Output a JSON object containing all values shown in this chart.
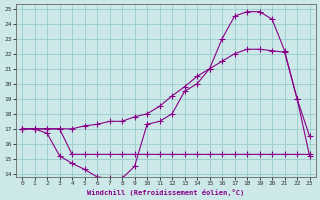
{
  "xlabel": "Windchill (Refroidissement éolien,°C)",
  "bg_color": "#cce8e8",
  "line_color": "#880088",
  "grid_color": "#99cccc",
  "line1_x": [
    0,
    1,
    2,
    3,
    4,
    5,
    6,
    7,
    8,
    9,
    10,
    11,
    12,
    13,
    14,
    15,
    16,
    17,
    18,
    19,
    20,
    21,
    22,
    23
  ],
  "line1_y": [
    17,
    17,
    16.7,
    15.2,
    14.7,
    14.3,
    13.8,
    13.7,
    13.7,
    14.5,
    17.3,
    17.5,
    18.0,
    19.5,
    20.0,
    21.0,
    23.0,
    24.5,
    24.8,
    24.8,
    24.3,
    22.2,
    19.0,
    16.5
  ],
  "line2_x": [
    0,
    1,
    2,
    3,
    4,
    5,
    6,
    7,
    8,
    9,
    10,
    11,
    12,
    13,
    14,
    15,
    16,
    17,
    18,
    19,
    20,
    21,
    22,
    23
  ],
  "line2_y": [
    17,
    17,
    17,
    17,
    15.3,
    15.3,
    15.3,
    15.3,
    15.3,
    15.3,
    15.3,
    15.3,
    15.3,
    15.3,
    15.3,
    15.3,
    15.3,
    15.3,
    15.3,
    15.3,
    15.3,
    15.3,
    15.3,
    15.3
  ],
  "line3_x": [
    0,
    1,
    2,
    3,
    4,
    5,
    6,
    7,
    8,
    9,
    10,
    11,
    12,
    13,
    14,
    15,
    16,
    17,
    18,
    19,
    20,
    21,
    22,
    23
  ],
  "line3_y": [
    17,
    17,
    17,
    17,
    17,
    17.2,
    17.3,
    17.5,
    17.5,
    17.8,
    18.0,
    18.5,
    19.2,
    19.8,
    20.5,
    21.0,
    21.5,
    22.0,
    22.3,
    22.3,
    22.2,
    22.1,
    19.0,
    15.2
  ],
  "ylim": [
    14,
    25
  ],
  "xlim": [
    0,
    23
  ],
  "yticks": [
    14,
    15,
    16,
    17,
    18,
    19,
    20,
    21,
    22,
    23,
    24,
    25
  ],
  "xticks": [
    0,
    1,
    2,
    3,
    4,
    5,
    6,
    7,
    8,
    9,
    10,
    11,
    12,
    13,
    14,
    15,
    16,
    17,
    18,
    19,
    20,
    21,
    22,
    23
  ]
}
